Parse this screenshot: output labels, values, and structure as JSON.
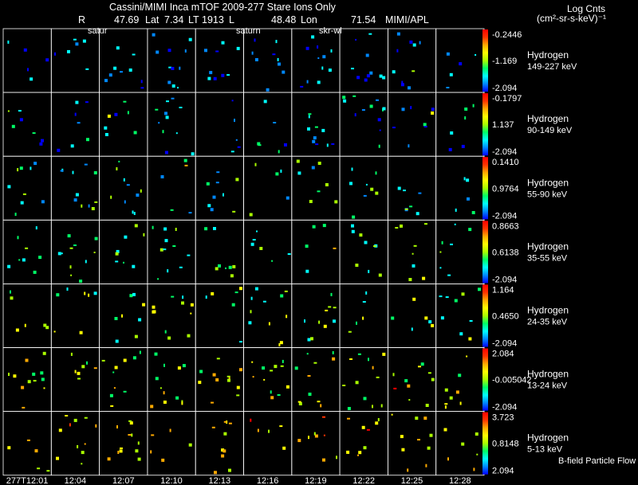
{
  "header": {
    "line1": "Cassini/MIMI Inca mTOF  2009-277   Stare   Ions Only",
    "r_label": "R",
    "r_value": "47.69",
    "lat_label": "Lat",
    "lat_value": "7.34",
    "lt_label": "LT",
    "lt_value": "1913",
    "l_label": "L",
    "l_value": "48.48",
    "lon_label": "Lon",
    "lon_value": "71.54",
    "credit": "MIMI/APL"
  },
  "units": {
    "line1": "Log Cnts",
    "line2": "(cm²-sr-s-keV)⁻¹"
  },
  "overlay_labels": [
    "satur",
    "saturn",
    "skr-wl"
  ],
  "footer_note": "B-field Particle Flow",
  "chart_data": {
    "type": "heatmap",
    "title": "Cassini/MIMI Inca mTOF 2009-277 Stare Ions Only",
    "xlabel": "",
    "ylabel": "",
    "columns": 10,
    "time_labels": [
      "277T12:01",
      "12:04",
      "12:07",
      "12:10",
      "12:13",
      "12:16",
      "12:19",
      "12:22",
      "12:25",
      "12:28"
    ],
    "colorscale": [
      "#0000ff",
      "#0088ff",
      "#00ffff",
      "#00ff66",
      "#aaff00",
      "#ffff00",
      "#ffaa00",
      "#ff3300",
      "#ff0000"
    ],
    "rows": [
      {
        "species": "Hydrogen",
        "energy": "149-227 keV",
        "cmax": -0.2446,
        "cmid": -1.169,
        "cmin": -2.094,
        "cmax_label": "-0.2446",
        "cmid_label": "-1.169",
        "cmin_label": "-2.094"
      },
      {
        "species": "Hydrogen",
        "energy": "90-149 keV",
        "cmax": -0.1797,
        "cmid": 1.137,
        "cmin": -2.094,
        "cmax_label": "-0.1797",
        "cmid_label": "1.137",
        "cmin_label": "-2.094"
      },
      {
        "species": "Hydrogen",
        "energy": "55-90 keV",
        "cmax": 0.141,
        "cmid": 0.9764,
        "cmin": -2.094,
        "cmax_label": "0.1410",
        "cmid_label": "0.9764",
        "cmin_label": "-2.094"
      },
      {
        "species": "Hydrogen",
        "energy": "35-55 keV",
        "cmax": 0.8663,
        "cmid": 0.6138,
        "cmin": -2.094,
        "cmax_label": "0.8663",
        "cmid_label": "0.6138",
        "cmin_label": "-2.094"
      },
      {
        "species": "Hydrogen",
        "energy": "24-35 keV",
        "cmax": 1.164,
        "cmid": 0.465,
        "cmin": -2.094,
        "cmax_label": "1.164",
        "cmid_label": "0.4650",
        "cmin_label": "-2.094"
      },
      {
        "species": "Hydrogen",
        "energy": "13-24 keV",
        "cmax": 2.084,
        "cmid": -0.005042,
        "cmin": -2.094,
        "cmax_label": "2.084",
        "cmid_label": "-0.005042",
        "cmin_label": "-2.094"
      },
      {
        "species": "Hydrogen",
        "energy": "5-13 keV",
        "cmax": 3.723,
        "cmid": 0.8148,
        "cmin": 2.094,
        "cmax_label": "3.723",
        "cmid_label": "0.8148",
        "cmin_label": "2.094"
      }
    ]
  }
}
